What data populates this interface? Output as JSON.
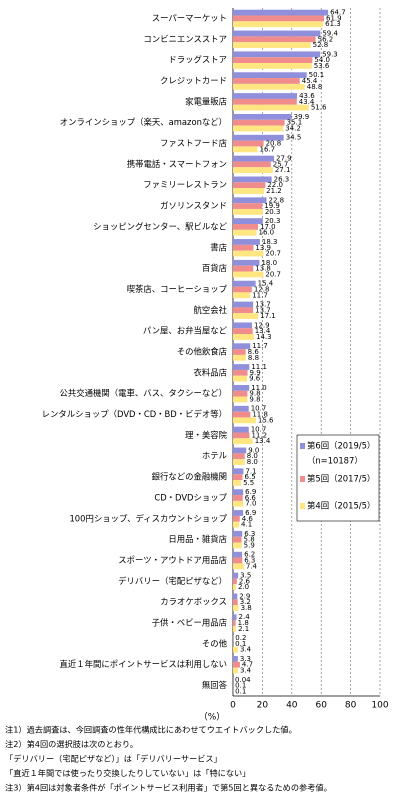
{
  "chart_data": {
    "type": "hbar",
    "categories": [
      "スーパーマーケット",
      "コンビニエンスストア",
      "ドラッグストア",
      "クレジットカード",
      "家電量販店",
      "オンラインショップ（楽天、amazonなど）",
      "ファストフード店",
      "携帯電話・スマートフォン",
      "ファミリーレストラン",
      "ガソリンスタンド",
      "ショッピングセンター、駅ビルなど",
      "書店",
      "百貨店",
      "喫茶店、コーヒーショップ",
      "航空会社",
      "パン屋、お弁当屋など",
      "その他飲食店",
      "衣料品店",
      "公共交通機関（電車、バス、タクシーなど）",
      "レンタルショップ（DVD・CD・BD・ビデオ等）",
      "理・美容院",
      "ホテル",
      "銀行などの金融機関",
      "CD・DVDショップ",
      "100円ショップ、ディスカウントショップ",
      "日用品・雑貨店",
      "スポーツ・アウトドア用品店",
      "デリバリー（宅配ピザなど）",
      "カラオケボックス",
      "子供・ベビー用品店",
      "その他",
      "直近１年間にポイントサービスは利用しない",
      "無回答"
    ],
    "series": [
      {
        "name": "第6回（2019/5）",
        "color": "#8f8fdc",
        "values": [
          64.7,
          59.4,
          59.3,
          50.1,
          43.6,
          39.9,
          34.5,
          27.9,
          26.3,
          22.8,
          20.3,
          18.3,
          18.0,
          15.4,
          13.7,
          12.9,
          11.7,
          11.1,
          11.0,
          10.7,
          10.7,
          9.0,
          7.1,
          6.9,
          6.9,
          6.3,
          6.2,
          3.5,
          2.9,
          2.4,
          0.2,
          3.3,
          0.04
        ],
        "value_labels": [
          "64.7",
          "59.4",
          "59.3",
          "50.1",
          "43.6",
          "39.9",
          "34.5",
          "27.9",
          "26.3",
          "22.8",
          "20.3",
          "18.3",
          "18.0",
          "15.4",
          "13.7",
          "12.9",
          "11.7",
          "11.1",
          "11.0",
          "10.7",
          "10.7",
          "9.0",
          "7.1",
          "6.9",
          "6.9",
          "6.3",
          "6.2",
          "3.5",
          "2.9",
          "2.4",
          "0.2",
          "3.3",
          "0.04"
        ]
      },
      {
        "name": "第5回（2017/5）",
        "color": "#f08c8c",
        "values": [
          61.9,
          56.2,
          54.0,
          45.4,
          43.4,
          35.1,
          20.8,
          25.7,
          22.0,
          19.9,
          17.0,
          13.9,
          13.8,
          12.8,
          13.7,
          13.4,
          8.6,
          9.9,
          9.8,
          11.8,
          11.2,
          8.0,
          6.5,
          6.6,
          4.6,
          5.8,
          6.3,
          2.6,
          3.2,
          1.8,
          0.1,
          4.7,
          0.1
        ],
        "value_labels": [
          "61.9",
          "56.2",
          "54.0",
          "45.4",
          "43.4",
          "35.1",
          "20.8",
          "25.7",
          "22.0",
          "19.9",
          "17.0",
          "13.9",
          "13.8",
          "12.8",
          "13.7",
          "13.4",
          "8.6",
          "9.9",
          "9.8",
          "11.8",
          "11.2",
          "8.0",
          "6.5",
          "6.6",
          "4.6",
          "5.8",
          "6.3",
          "2.6",
          "3.2",
          "1.8",
          "0.1",
          "4.7",
          "0.1"
        ]
      },
      {
        "name": "第4回（2015/5）",
        "color": "#ffe680",
        "values": [
          61.3,
          52.8,
          53.6,
          48.8,
          51.6,
          34.2,
          16.7,
          27.1,
          21.2,
          20.3,
          16.0,
          20.7,
          20.7,
          11.7,
          17.1,
          14.3,
          8.8,
          9.6,
          9.8,
          15.6,
          13.4,
          8.0,
          5.5,
          7.0,
          4.1,
          5.9,
          7.4,
          2.0,
          3.8,
          2.1,
          3.4,
          3.4,
          0.1
        ],
        "value_labels": [
          "61.3",
          "52.8",
          "53.6",
          "48.8",
          "51.6",
          "34.2",
          "16.7",
          "27.1",
          "21.2",
          "20.3",
          "16.0",
          "20.7",
          "20.7",
          "11.7",
          "17.1",
          "14.3",
          "8.8",
          "9.6",
          "9.8",
          "15.6",
          "13.4",
          "8.0",
          "5.5",
          "7.0",
          "4.1",
          "5.9",
          "7.4",
          "2.0",
          "3.8",
          "2.1",
          "3.4",
          "3.4",
          "0.1"
        ]
      }
    ],
    "legend_note": "（n=10187）",
    "xlabel": "（%）",
    "xlim": [
      0,
      100
    ],
    "xticks": [
      0,
      20,
      40,
      60,
      80,
      100
    ],
    "grid": true,
    "notes": [
      "注1）過去調査は、今回調査の性年代構成比にあわせてウエイトバックした値。",
      "注2）第4回の選択肢は次のとおり。",
      "「デリバリー（宅配ピザなど）」は「デリバリーサービス」",
      "「直近１年間では使ったり交換したりしていない」は「特にない」",
      "注3）第4回は対象者条件が「ポイントサービス利用者」で第5回と異なるための参考値。"
    ]
  }
}
